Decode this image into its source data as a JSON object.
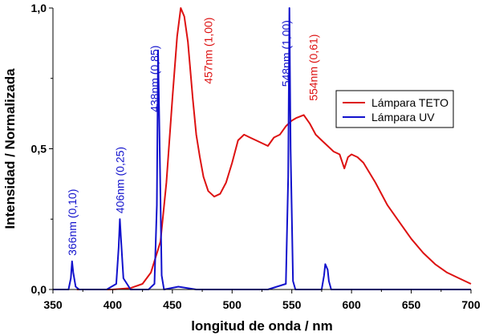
{
  "chart_data": {
    "type": "line",
    "xlabel": "longitud de onda / nm",
    "ylabel": "Intensidad / Normalizada",
    "xlim": [
      350,
      700
    ],
    "ylim": [
      0,
      1.0
    ],
    "x_ticks": [
      350,
      400,
      450,
      500,
      550,
      600,
      650,
      700
    ],
    "x_tick_labels": [
      "350",
      "400",
      "450",
      "500",
      "550",
      "600",
      "650",
      "700"
    ],
    "y_ticks": [
      0,
      0.5,
      1.0
    ],
    "y_tick_labels": [
      "0,0",
      "0,5",
      "1,0"
    ],
    "legend_position": "right",
    "grid": false,
    "colors": {
      "teto": "#dd1111",
      "uv": "#1111cc"
    },
    "series": [
      {
        "name": "Lámpara TETO",
        "color": "#dd1111",
        "x": [
          370,
          400,
          415,
          425,
          432,
          440,
          445,
          450,
          454,
          457,
          460,
          463,
          467,
          470,
          473,
          476,
          480,
          485,
          490,
          495,
          500,
          505,
          510,
          515,
          520,
          525,
          530,
          535,
          540,
          545,
          550,
          554,
          560,
          565,
          570,
          575,
          580,
          585,
          590,
          594,
          597,
          600,
          605,
          610,
          620,
          630,
          640,
          650,
          660,
          670,
          680,
          690,
          700
        ],
        "y": [
          0.0,
          0.0,
          0.005,
          0.02,
          0.06,
          0.17,
          0.38,
          0.68,
          0.9,
          1.0,
          0.97,
          0.88,
          0.68,
          0.55,
          0.47,
          0.4,
          0.35,
          0.33,
          0.34,
          0.38,
          0.45,
          0.53,
          0.55,
          0.54,
          0.53,
          0.52,
          0.51,
          0.54,
          0.55,
          0.58,
          0.6,
          0.61,
          0.62,
          0.59,
          0.55,
          0.53,
          0.51,
          0.49,
          0.48,
          0.43,
          0.47,
          0.48,
          0.47,
          0.45,
          0.38,
          0.3,
          0.24,
          0.18,
          0.13,
          0.09,
          0.06,
          0.04,
          0.02
        ]
      },
      {
        "name": "Lámpara UV",
        "color": "#1111cc",
        "x": [
          350,
          363,
          365,
          366,
          367,
          369,
          372,
          380,
          395,
          403,
          405,
          406,
          407,
          409,
          415,
          430,
          435,
          437,
          438,
          439,
          441,
          443,
          455,
          470,
          490,
          510,
          530,
          545,
          547,
          548,
          549,
          551,
          553,
          560,
          575,
          577,
          578,
          579,
          580,
          581,
          583,
          590,
          600,
          700
        ],
        "y": [
          0.0,
          0.0,
          0.04,
          0.1,
          0.06,
          0.01,
          0.0,
          0.0,
          0.0,
          0.02,
          0.15,
          0.25,
          0.18,
          0.04,
          0.0,
          0.0,
          0.02,
          0.3,
          0.85,
          0.6,
          0.05,
          0.0,
          0.01,
          0.0,
          0.0,
          0.0,
          0.0,
          0.02,
          0.4,
          1.0,
          0.5,
          0.03,
          0.0,
          0.0,
          0.0,
          0.05,
          0.09,
          0.08,
          0.07,
          0.03,
          0.0,
          0.0,
          0.0,
          0.0
        ]
      }
    ],
    "annotations": [
      {
        "text": "366nm (0,10)",
        "x": 366,
        "y": 0.12,
        "color": "#1111cc"
      },
      {
        "text": "406nm (0,25)",
        "x": 406,
        "y": 0.27,
        "color": "#1111cc"
      },
      {
        "text": "438nm (0,85)",
        "x": 435,
        "y": 0.63,
        "color": "#1111cc"
      },
      {
        "text": "457nm (1,00)",
        "x": 480,
        "y": 0.73,
        "color": "#dd1111"
      },
      {
        "text": "548nm (1,00)",
        "x": 545,
        "y": 0.72,
        "color": "#1111cc"
      },
      {
        "text": "554nm (0,61)",
        "x": 568,
        "y": 0.67,
        "color": "#dd1111"
      }
    ]
  }
}
